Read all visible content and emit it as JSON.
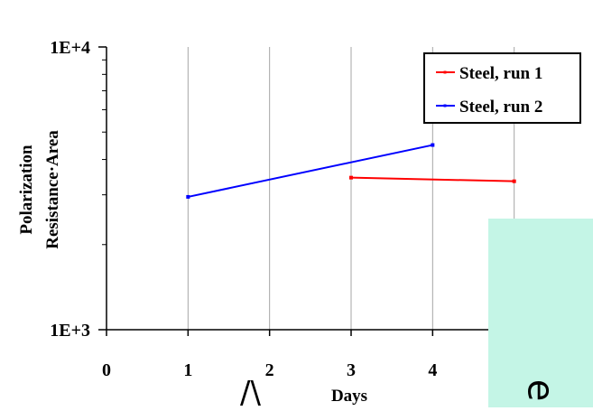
{
  "chart_data": {
    "type": "line",
    "title": "",
    "xlabel": "Days",
    "ylabel": [
      "Polarization",
      "Resistance·Area"
    ],
    "x_ticks": [
      "0",
      "1",
      "2",
      "3",
      "4"
    ],
    "y_ticks": [
      "1E+3",
      "1E+4"
    ],
    "xlim": [
      0,
      6
    ],
    "ylim": [
      1000,
      10000
    ],
    "y_scale": "log",
    "grid": "vertical",
    "legend_position": "top-right",
    "series": [
      {
        "name": "Steel, run 1",
        "color": "#ff0000",
        "x": [
          3,
          5
        ],
        "y": [
          3450,
          3350
        ]
      },
      {
        "name": "Steel, run 2",
        "color": "#0000ff",
        "x": [
          1,
          4
        ],
        "y": [
          2950,
          4500
        ]
      }
    ]
  },
  "overlay": {
    "glyph": "e",
    "caret": "/\\"
  }
}
